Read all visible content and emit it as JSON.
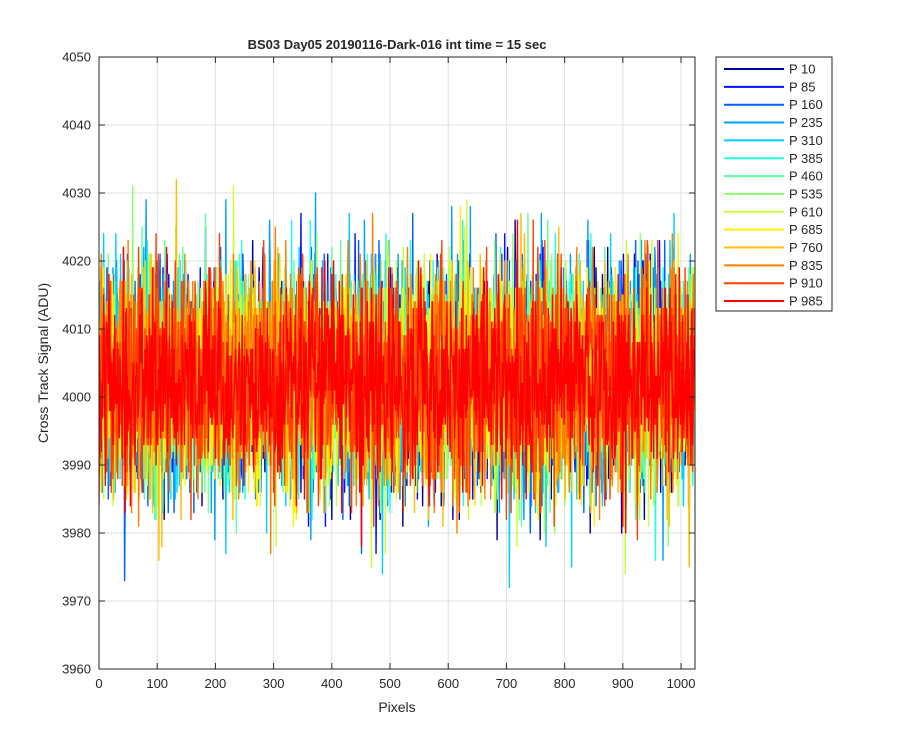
{
  "chart_data": {
    "type": "line",
    "title": "BS03 Day05 20190116-Dark-016 int time = 15 sec",
    "xlabel": "Pixels",
    "ylabel": "Cross Track Signal (ADU)",
    "xlim": [
      0,
      1024
    ],
    "ylim": [
      3960,
      4050
    ],
    "x_ticks": [
      0,
      100,
      200,
      300,
      400,
      500,
      600,
      700,
      800,
      900,
      1000
    ],
    "y_ticks": [
      3960,
      3970,
      3980,
      3990,
      4000,
      4010,
      4020,
      4030,
      4040,
      4050
    ],
    "grid": true,
    "legend_position": "outside-top-right",
    "n_points": 1024,
    "series": [
      {
        "name": "P 10",
        "color": "#00009b",
        "mean": 4002.5,
        "spread": 8.0
      },
      {
        "name": "P 85",
        "color": "#0010ff",
        "mean": 4002.5,
        "spread": 8.0
      },
      {
        "name": "P 160",
        "color": "#0060ff",
        "mean": 4002.5,
        "spread": 8.0
      },
      {
        "name": "P 235",
        "color": "#00a0ff",
        "mean": 4002.5,
        "spread": 8.0
      },
      {
        "name": "P 310",
        "color": "#00d0ff",
        "mean": 4002.5,
        "spread": 8.0
      },
      {
        "name": "P 385",
        "color": "#20ffdf",
        "mean": 4002.5,
        "spread": 8.0
      },
      {
        "name": "P 460",
        "color": "#60ffa0",
        "mean": 4002.5,
        "spread": 8.0
      },
      {
        "name": "P 535",
        "color": "#90ff70",
        "mean": 4002.5,
        "spread": 8.0
      },
      {
        "name": "P 610",
        "color": "#c8ff38",
        "mean": 4002.5,
        "spread": 8.0
      },
      {
        "name": "P 685",
        "color": "#ffef00",
        "mean": 4002.5,
        "spread": 8.0
      },
      {
        "name": "P 760",
        "color": "#ffbf00",
        "mean": 4002.5,
        "spread": 8.0
      },
      {
        "name": "P 835",
        "color": "#ff8000",
        "mean": 4002.5,
        "spread": 8.0
      },
      {
        "name": "P 910",
        "color": "#ff4000",
        "mean": 4002.5,
        "spread": 8.0
      },
      {
        "name": "P 985",
        "color": "#ff0000",
        "mean": 4002.5,
        "spread": 7.0
      }
    ]
  }
}
